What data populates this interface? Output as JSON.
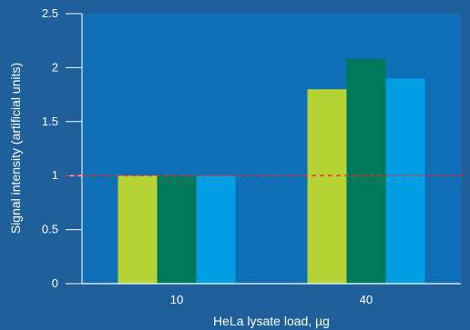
{
  "chart_data": {
    "type": "bar",
    "title": "",
    "xlabel": "HeLa lysate load, µg",
    "ylabel": "Signal intensity (artificial units)",
    "categories": [
      "10",
      "40"
    ],
    "series": [
      {
        "values": [
          1.0,
          1.8
        ],
        "color": "#b5d334"
      },
      {
        "values": [
          1.0,
          2.08
        ],
        "color": "#00795a"
      },
      {
        "values": [
          1.0,
          1.9
        ],
        "color": "#009fe3"
      }
    ],
    "ylim": [
      0,
      2.5
    ],
    "yticks": [
      0,
      0.5,
      1,
      1.5,
      2,
      2.5
    ],
    "ytick_labels": [
      "0",
      "0.5",
      "1",
      "1.5",
      "2",
      "2.5"
    ],
    "reference_line": {
      "value": 1,
      "color": "#e8312a",
      "style": "dashed"
    },
    "grid": false,
    "legend": "none"
  },
  "colors": {
    "background": "#1f5f9c",
    "plot_area": "#0e6eb6",
    "text": "#ffffff"
  }
}
